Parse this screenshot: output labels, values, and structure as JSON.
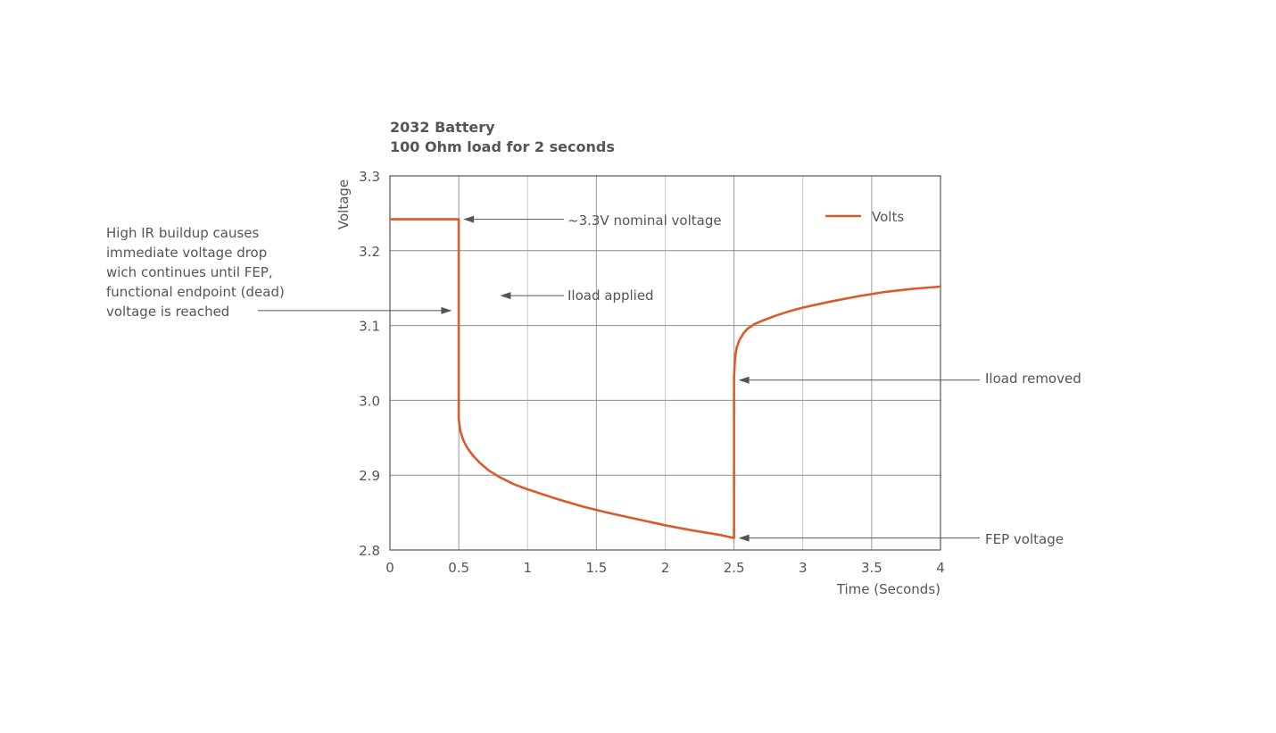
{
  "chart_data": {
    "type": "line",
    "title": [
      "2032 Battery",
      "100 Ohm load for 2 seconds"
    ],
    "xlabel": "Time (Seconds)",
    "ylabel": "Voltage",
    "xlim": [
      0,
      4
    ],
    "ylim": [
      2.8,
      3.3
    ],
    "x_ticks": [
      0,
      0.5,
      1,
      1.5,
      2,
      2.5,
      3,
      3.5,
      4
    ],
    "x_tick_labels": [
      "0",
      "0.5",
      "1",
      "1.5",
      "2",
      "2.5",
      "3",
      "3.5",
      "4"
    ],
    "y_ticks": [
      2.8,
      2.9,
      3.0,
      3.1,
      3.2,
      3.3
    ],
    "y_tick_labels": [
      "2.8",
      "2.9",
      "3.0",
      "3.1",
      "3.2",
      "3.3"
    ],
    "grid": true,
    "legend_position": "top-right",
    "series": [
      {
        "name": "Volts",
        "color": "#d95a2b",
        "x": [
          0,
          0.5,
          0.5,
          0.51,
          0.53,
          0.56,
          0.6,
          0.65,
          0.72,
          0.8,
          0.9,
          1.0,
          1.2,
          1.4,
          1.6,
          1.8,
          2.0,
          2.2,
          2.4,
          2.5,
          2.5,
          2.505,
          2.51,
          2.52,
          2.54,
          2.57,
          2.6,
          2.65,
          2.7,
          2.8,
          2.9,
          3.0,
          3.2,
          3.4,
          3.6,
          3.8,
          4.0
        ],
        "y": [
          3.242,
          3.242,
          2.975,
          2.96,
          2.948,
          2.937,
          2.927,
          2.917,
          2.906,
          2.897,
          2.888,
          2.881,
          2.869,
          2.858,
          2.849,
          2.841,
          2.833,
          2.826,
          2.82,
          2.816,
          3.03,
          3.05,
          3.06,
          3.071,
          3.081,
          3.09,
          3.096,
          3.102,
          3.106,
          3.113,
          3.119,
          3.124,
          3.132,
          3.139,
          3.145,
          3.149,
          3.152
        ]
      }
    ],
    "annotations": [
      {
        "id": "nominal",
        "lines": [
          "~3.3V nominal voltage"
        ],
        "x": 0.5,
        "y": 3.242
      },
      {
        "id": "iload-applied",
        "lines": [
          "Iload applied"
        ],
        "x": 0.8,
        "y": 3.14
      },
      {
        "id": "high-ir",
        "lines": [
          "High IR buildup causes",
          "immediate voltage drop",
          "wich continues until FEP,",
          "functional endpoint (dead)",
          "voltage is reached"
        ],
        "x": 0.45,
        "y": 3.12
      },
      {
        "id": "iload-removed",
        "lines": [
          "Iload removed"
        ],
        "x": 2.5,
        "y": 3.027
      },
      {
        "id": "fep",
        "lines": [
          "FEP voltage"
        ],
        "x": 2.5,
        "y": 2.816
      }
    ]
  }
}
